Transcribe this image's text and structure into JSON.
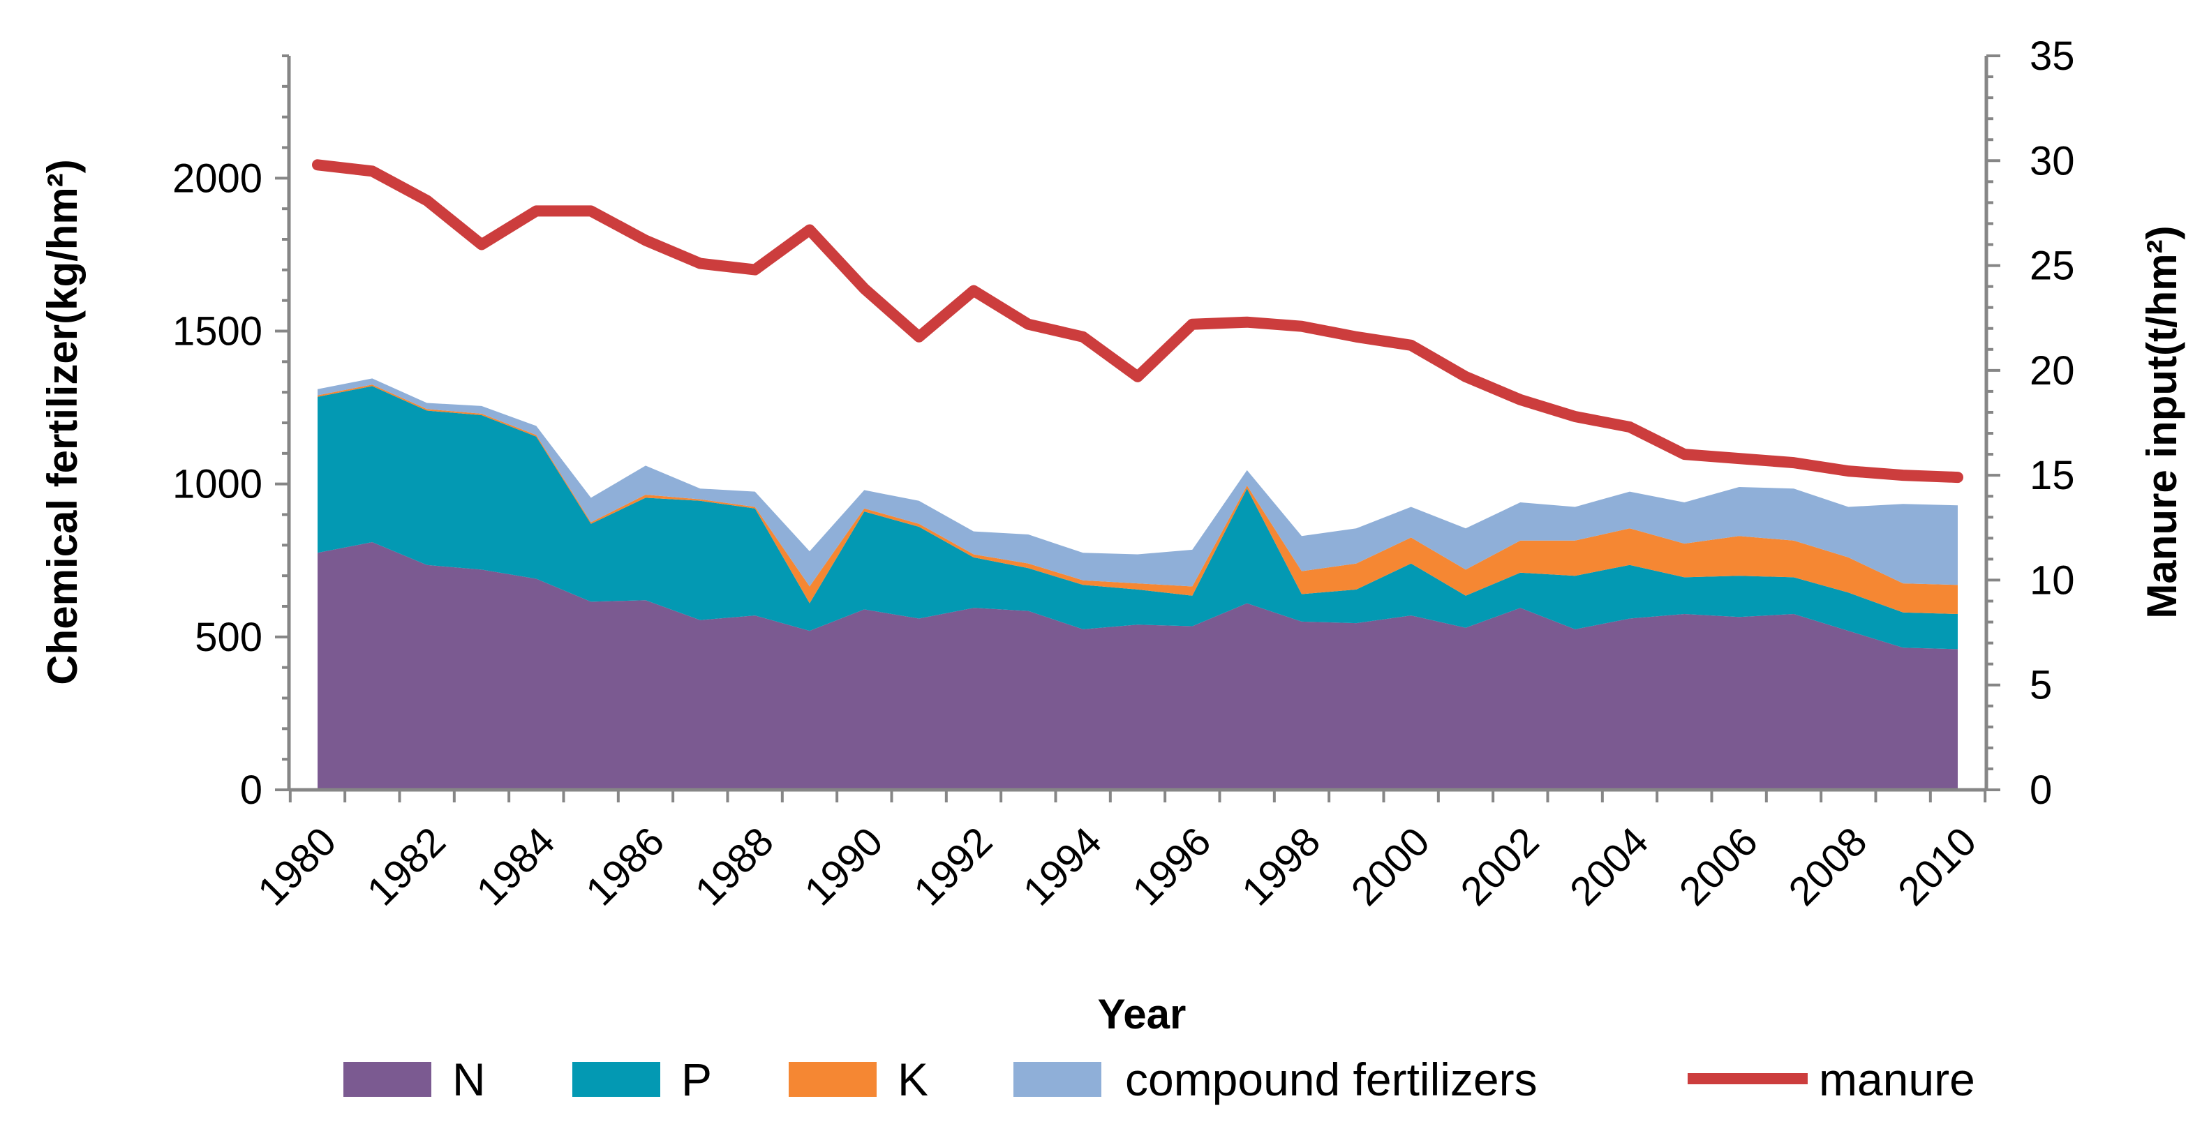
{
  "chart_data": {
    "type": "area",
    "title": "",
    "xlabel": "Year",
    "ylabel_left": "Chemical fertilizer(kg/hm²)",
    "ylabel_right": "Manure input(t/hm²)",
    "ylim_left": [
      0,
      2400
    ],
    "ylim_right": [
      0,
      35
    ],
    "yticks_left": [
      0,
      500,
      1000,
      1500,
      2000
    ],
    "yticks_right": [
      0,
      5,
      10,
      15,
      20,
      25,
      30,
      35
    ],
    "xtick_labels": [
      "1980",
      "1982",
      "1984",
      "1986",
      "1988",
      "1990",
      "1992",
      "1994",
      "1996",
      "1998",
      "2000",
      "2002",
      "2004",
      "2006",
      "2008",
      "2010"
    ],
    "grid": false,
    "legend_position": "bottom",
    "stacked": true,
    "x": [
      1980,
      1981,
      1982,
      1983,
      1984,
      1985,
      1986,
      1987,
      1988,
      1989,
      1990,
      1991,
      1992,
      1993,
      1994,
      1995,
      1996,
      1997,
      1998,
      1999,
      2000,
      2001,
      2002,
      2003,
      2004,
      2005,
      2006,
      2007,
      2008,
      2009,
      2010
    ],
    "series": [
      {
        "name": "N",
        "color": "#7B5A91",
        "axis": "left",
        "kind": "area",
        "values": [
          775,
          810,
          735,
          720,
          690,
          615,
          620,
          555,
          570,
          520,
          590,
          560,
          595,
          585,
          525,
          540,
          535,
          610,
          550,
          545,
          570,
          530,
          595,
          525,
          560,
          575,
          565,
          575,
          520,
          465,
          460
        ]
      },
      {
        "name": "P",
        "color": "#0399B3",
        "axis": "left",
        "kind": "area",
        "values": [
          510,
          510,
          505,
          505,
          465,
          255,
          335,
          390,
          350,
          90,
          320,
          300,
          165,
          140,
          145,
          115,
          100,
          375,
          90,
          110,
          170,
          105,
          115,
          175,
          175,
          120,
          135,
          120,
          125,
          115,
          115
        ]
      },
      {
        "name": "K",
        "color": "#F58733",
        "axis": "left",
        "kind": "area",
        "values": [
          5,
          5,
          5,
          5,
          5,
          5,
          10,
          5,
          5,
          55,
          10,
          10,
          10,
          15,
          15,
          20,
          30,
          10,
          75,
          85,
          85,
          85,
          105,
          115,
          120,
          110,
          130,
          120,
          115,
          95,
          95
        ]
      },
      {
        "name": "compound fertilizers",
        "color": "#8FAFD8",
        "axis": "left",
        "kind": "area",
        "values": [
          20,
          20,
          20,
          25,
          30,
          80,
          95,
          35,
          50,
          115,
          60,
          75,
          75,
          95,
          90,
          95,
          120,
          50,
          115,
          115,
          100,
          135,
          125,
          110,
          120,
          135,
          160,
          170,
          165,
          260,
          260
        ]
      },
      {
        "name": "manure",
        "color": "#CC3D3D",
        "axis": "right",
        "kind": "line",
        "values": [
          29.8,
          29.5,
          28.1,
          26.0,
          27.6,
          27.6,
          26.2,
          25.1,
          24.8,
          26.7,
          23.9,
          21.6,
          23.8,
          22.2,
          21.6,
          19.7,
          22.2,
          22.3,
          22.1,
          21.6,
          21.2,
          19.7,
          18.6,
          17.8,
          17.3,
          16.0,
          15.8,
          15.6,
          15.2,
          15.0,
          14.9
        ]
      }
    ]
  }
}
